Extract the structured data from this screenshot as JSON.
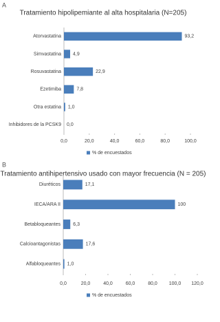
{
  "chart_data": [
    {
      "type": "bar",
      "label": "A",
      "title": "Tratamiento hipolipemiante al alta hospitalaria (N=205)",
      "categories": [
        "Atorvastatina",
        "Simvastatina",
        "Rosuvastatina",
        "Ezetimiba",
        "Otra estatina",
        "Inhibidores de la PCSK9"
      ],
      "series": [
        {
          "name": "% de encuestados",
          "color": "#4a7ebb",
          "values": [
            93.2,
            4.9,
            22.9,
            7.8,
            1.0,
            0.0
          ],
          "value_labels": [
            "93,2",
            "4,9",
            "22,9",
            "7,8",
            "1,0",
            "0,0"
          ]
        }
      ],
      "xlim": [
        0,
        100
      ],
      "xticks": [
        {
          "value": 0,
          "label": "0,0"
        },
        {
          "value": 20,
          "label": "20,0"
        },
        {
          "value": 40,
          "label": "40,0"
        },
        {
          "value": 60,
          "label": "60,0"
        },
        {
          "value": 80,
          "label": "80,0"
        },
        {
          "value": 100,
          "label": "100,0"
        }
      ],
      "legend": "bottom"
    },
    {
      "type": "bar",
      "label": "B",
      "title": "Tratamiento antihipertensivo usado con mayor frecuencia (N = 205)",
      "categories": [
        "Diuréticos",
        "IECA/ARA II",
        "Betabloqueantes",
        "Calcioantagonistas",
        "Alfabloqueantes"
      ],
      "series": [
        {
          "name": "% de encuestados",
          "color": "#4a7ebb",
          "values": [
            17.1,
            100,
            6.3,
            17.6,
            1.0
          ],
          "value_labels": [
            "17,1",
            "100",
            "6,3",
            "17,6",
            "1,0"
          ]
        }
      ],
      "xlim": [
        0,
        120
      ],
      "xticks": [
        {
          "value": 0,
          "label": "0,0"
        },
        {
          "value": 20,
          "label": "20,0"
        },
        {
          "value": 40,
          "label": "40,0"
        },
        {
          "value": 60,
          "label": "60,0"
        },
        {
          "value": 80,
          "label": "80,0"
        },
        {
          "value": 100,
          "label": "100,0"
        },
        {
          "value": 120,
          "label": "120,0"
        }
      ],
      "legend": "bottom"
    }
  ]
}
